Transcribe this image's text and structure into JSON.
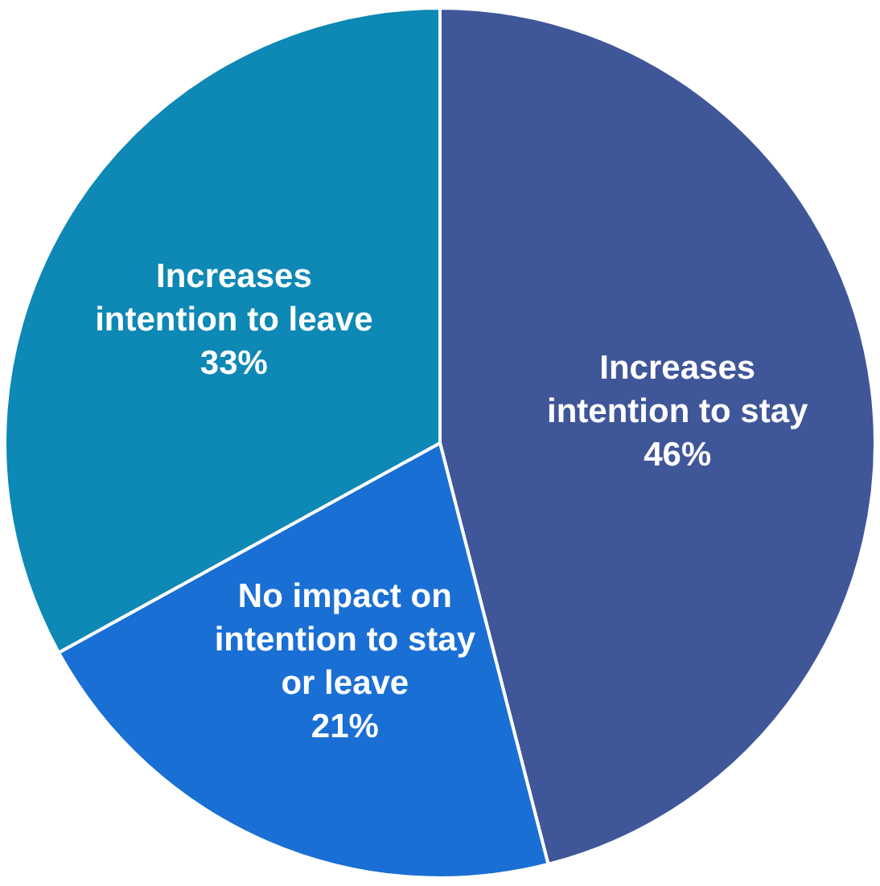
{
  "chart_data": {
    "type": "pie",
    "categories": [
      "Increases intention to stay",
      "No impact on intention to stay or leave",
      "Increases intention to leave"
    ],
    "values": [
      46,
      21,
      33
    ],
    "colors": [
      "#3f5699",
      "#1a6fd4",
      "#0e88b5"
    ],
    "value_labels": [
      "46%",
      "21%",
      "33%"
    ],
    "legend": false
  }
}
